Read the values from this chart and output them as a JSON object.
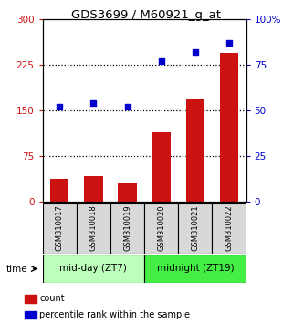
{
  "title": "GDS3699 / M60921_g_at",
  "categories": [
    "GSM310017",
    "GSM310018",
    "GSM310019",
    "GSM310020",
    "GSM310021",
    "GSM310022"
  ],
  "bar_values": [
    38,
    42,
    30,
    115,
    170,
    245
  ],
  "scatter_values": [
    52,
    54,
    52,
    77,
    82,
    87
  ],
  "bar_color": "#cc1111",
  "scatter_color": "#0000cc",
  "left_ylim": [
    0,
    300
  ],
  "right_ylim": [
    0,
    100
  ],
  "left_yticks": [
    0,
    75,
    150,
    225,
    300
  ],
  "right_yticks": [
    0,
    25,
    50,
    75,
    100
  ],
  "right_yticklabels": [
    "0",
    "25",
    "50",
    "75",
    "100%"
  ],
  "groups": [
    {
      "label": "mid-day (ZT7)",
      "indices": [
        0,
        1,
        2
      ],
      "color": "#bbffbb"
    },
    {
      "label": "midnight (ZT19)",
      "indices": [
        3,
        4,
        5
      ],
      "color": "#44ee44"
    }
  ],
  "time_label": "time",
  "legend_bar_label": "count",
  "legend_scatter_label": "percentile rank within the sample",
  "dotted_lines": [
    75,
    150,
    225
  ],
  "sample_box_color": "#d8d8d8",
  "plot_bg": "#ffffff"
}
